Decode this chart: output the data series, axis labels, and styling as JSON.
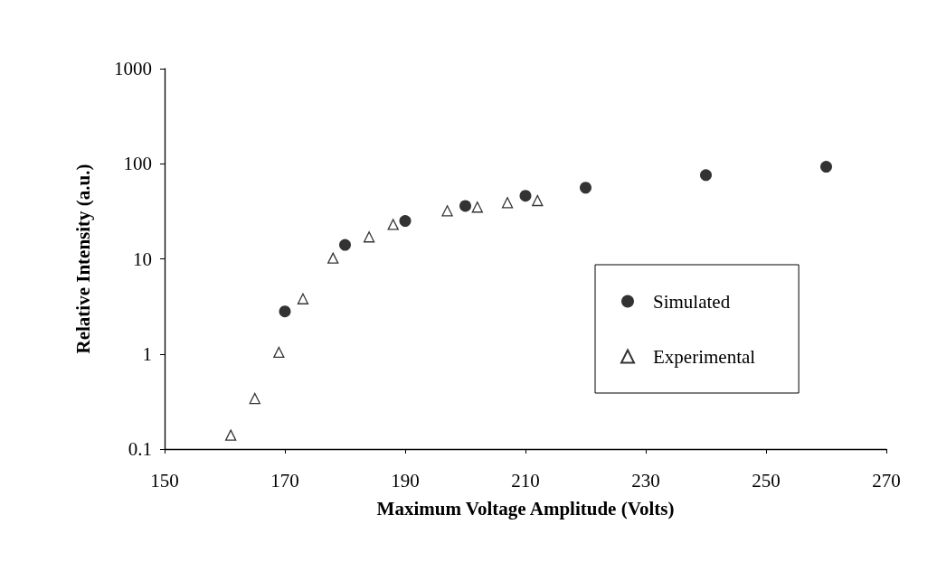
{
  "chart_data": {
    "type": "scatter",
    "xlabel": "Maximum Voltage Amplitude (Volts)",
    "ylabel": "Relative Intensity (a.u.)",
    "xlim": [
      150,
      270
    ],
    "xticks": [
      150,
      170,
      190,
      210,
      230,
      250,
      270
    ],
    "ylim": [
      0.1,
      1000
    ],
    "yticks": [
      0.1,
      1,
      10,
      100,
      1000
    ],
    "log": "y",
    "grid": false,
    "legend": "right",
    "series": [
      {
        "name": "Simulated",
        "color": "#000000",
        "marker": "circle",
        "x": [
          170,
          180,
          190,
          200,
          210,
          220,
          240,
          260
        ],
        "values": [
          2.8,
          14,
          25,
          36,
          46,
          56,
          76,
          93
        ]
      },
      {
        "name": "Experimental",
        "color": "#000000",
        "marker": "triangle",
        "x": [
          161,
          165,
          169,
          173,
          178,
          184,
          188,
          197,
          202,
          207,
          212
        ],
        "values": [
          0.14,
          0.34,
          1.04,
          3.8,
          10.2,
          17,
          23,
          32,
          35,
          39,
          41
        ]
      }
    ]
  }
}
